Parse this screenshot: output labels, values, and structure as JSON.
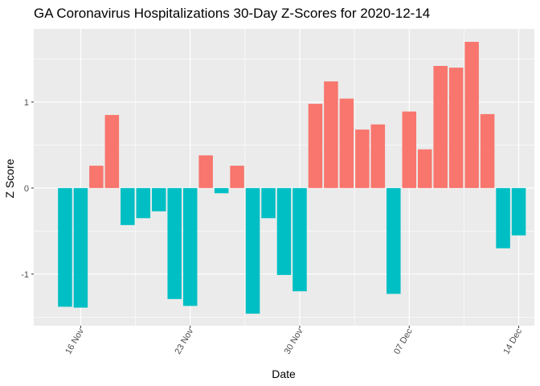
{
  "chart_data": {
    "type": "bar",
    "title": "GA Coronavirus Hospitalizations 30-Day Z-Scores for 2020-12-14",
    "xlabel": "Date",
    "ylabel": "Z Score",
    "ylim": [
      -1.6,
      1.85
    ],
    "y_ticks": [
      {
        "value": -1,
        "label": "-1"
      },
      {
        "value": 0,
        "label": "0"
      },
      {
        "value": 1,
        "label": "1"
      }
    ],
    "x_ticks": [
      {
        "date": "2020-11-16",
        "label": "16 Nov"
      },
      {
        "date": "2020-11-23",
        "label": "23 Nov"
      },
      {
        "date": "2020-11-30",
        "label": "30 Nov"
      },
      {
        "date": "2020-12-07",
        "label": "07 Dec"
      },
      {
        "date": "2020-12-14",
        "label": "14 Dec"
      }
    ],
    "x_range": [
      "2020-11-13",
      "2020-12-15"
    ],
    "grid": true,
    "legend": "none",
    "colors": {
      "positive": "#F8766D",
      "negative": "#00BFC4",
      "panel": "#EBEBEB",
      "grid": "#FFFFFF"
    },
    "series": [
      {
        "dates": [
          "2020-11-15",
          "2020-11-16",
          "2020-11-17",
          "2020-11-18",
          "2020-11-19",
          "2020-11-20",
          "2020-11-21",
          "2020-11-22",
          "2020-11-23",
          "2020-11-24",
          "2020-11-25",
          "2020-11-26",
          "2020-11-27",
          "2020-11-28",
          "2020-11-29",
          "2020-11-30",
          "2020-12-01",
          "2020-12-02",
          "2020-12-03",
          "2020-12-04",
          "2020-12-05",
          "2020-12-06",
          "2020-12-07",
          "2020-12-08",
          "2020-12-09",
          "2020-12-10",
          "2020-12-11",
          "2020-12-12",
          "2020-12-13",
          "2020-12-14"
        ],
        "values": [
          -1.38,
          -1.39,
          0.26,
          0.85,
          -0.43,
          -0.35,
          -0.27,
          -1.29,
          -1.37,
          0.38,
          -0.06,
          0.26,
          -1.46,
          -0.35,
          -1.01,
          -1.2,
          0.98,
          1.24,
          1.04,
          0.68,
          0.74,
          -1.23,
          0.89,
          0.45,
          1.42,
          1.4,
          1.7,
          0.86,
          -0.7,
          -0.55
        ]
      }
    ]
  }
}
